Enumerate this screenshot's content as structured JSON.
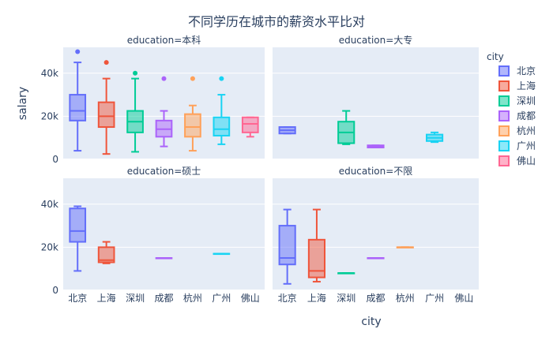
{
  "chart_data": {
    "type": "box",
    "title": "不同学历在城市的薪资水平比对",
    "xlabel": "city",
    "ylabel": "salary",
    "ylim": [
      0,
      52000
    ],
    "yticks": [
      0,
      20000,
      40000
    ],
    "ytick_labels": [
      "0",
      "20k",
      "40k"
    ],
    "categories": [
      "北京",
      "上海",
      "深圳",
      "成都",
      "杭州",
      "广州",
      "佛山"
    ],
    "legend": {
      "title": "city",
      "placement": "right",
      "items": [
        {
          "name": "北京",
          "color": "#636efa"
        },
        {
          "name": "上海",
          "color": "#EF553B"
        },
        {
          "name": "深圳",
          "color": "#00cc96"
        },
        {
          "name": "成都",
          "color": "#ab63fa"
        },
        {
          "name": "杭州",
          "color": "#FFA15A"
        },
        {
          "name": "广州",
          "color": "#19d3f3"
        },
        {
          "name": "佛山",
          "color": "#FF6692"
        }
      ]
    },
    "facets": [
      {
        "label": "education=本科",
        "boxes": [
          {
            "city": "北京",
            "min": 4000,
            "q1": 18000,
            "median": 22500,
            "q3": 30000,
            "max": 45000,
            "outliers": [
              50000
            ]
          },
          {
            "city": "上海",
            "min": 2500,
            "q1": 15000,
            "median": 20000,
            "q3": 26500,
            "max": 37500,
            "outliers": [
              45000
            ]
          },
          {
            "city": "深圳",
            "min": 3500,
            "q1": 12500,
            "median": 17500,
            "q3": 22500,
            "max": 37500,
            "outliers": [
              40000
            ]
          },
          {
            "city": "成都",
            "min": 6000,
            "q1": 10500,
            "median": 14000,
            "q3": 18000,
            "max": 22500,
            "outliers": [
              37500
            ]
          },
          {
            "city": "杭州",
            "min": 4000,
            "q1": 10500,
            "median": 15000,
            "q3": 21000,
            "max": 25000,
            "outliers": [
              37500
            ]
          },
          {
            "city": "广州",
            "min": 7000,
            "q1": 11000,
            "median": 14000,
            "q3": 19500,
            "max": 30000,
            "outliers": [
              37500
            ]
          },
          {
            "city": "佛山",
            "min": 10500,
            "q1": 12500,
            "median": 16500,
            "q3": 19500,
            "max": 19500,
            "outliers": []
          }
        ]
      },
      {
        "label": "education=大专",
        "boxes": [
          {
            "city": "北京",
            "min": 12000,
            "q1": 12000,
            "median": 13500,
            "q3": 15000,
            "max": 15000,
            "outliers": []
          },
          {
            "city": "深圳",
            "min": 7000,
            "q1": 7500,
            "median": 12500,
            "q3": 17500,
            "max": 22500,
            "outliers": []
          },
          {
            "city": "成都",
            "min": 5500,
            "q1": 5500,
            "median": 6000,
            "q3": 6500,
            "max": 6500,
            "outliers": []
          },
          {
            "city": "广州",
            "min": 8000,
            "q1": 8500,
            "median": 10000,
            "q3": 11500,
            "max": 12500,
            "outliers": []
          }
        ]
      },
      {
        "label": "education=硕士",
        "boxes": [
          {
            "city": "北京",
            "min": 9000,
            "q1": 22500,
            "median": 27500,
            "q3": 38000,
            "max": 39000,
            "outliers": []
          },
          {
            "city": "上海",
            "min": 12500,
            "q1": 13000,
            "median": 14000,
            "q3": 20000,
            "max": 22500,
            "outliers": []
          },
          {
            "city": "成都",
            "min": 15000,
            "q1": 15000,
            "median": 15000,
            "q3": 15000,
            "max": 15000,
            "outliers": []
          },
          {
            "city": "广州",
            "min": 17000,
            "q1": 17000,
            "median": 17000,
            "q3": 17000,
            "max": 17000,
            "outliers": []
          }
        ]
      },
      {
        "label": "education=不限",
        "boxes": [
          {
            "city": "北京",
            "min": 3000,
            "q1": 12000,
            "median": 15000,
            "q3": 30000,
            "max": 37500,
            "outliers": []
          },
          {
            "city": "上海",
            "min": 4000,
            "q1": 6000,
            "median": 9000,
            "q3": 23500,
            "max": 37500,
            "outliers": []
          },
          {
            "city": "深圳",
            "min": 8000,
            "q1": 8000,
            "median": 8000,
            "q3": 8000,
            "max": 8000,
            "outliers": []
          },
          {
            "city": "成都",
            "min": 15000,
            "q1": 15000,
            "median": 15000,
            "q3": 15000,
            "max": 15000,
            "outliers": []
          },
          {
            "city": "杭州",
            "min": 20000,
            "q1": 20000,
            "median": 20000,
            "q3": 20000,
            "max": 20000,
            "outliers": []
          }
        ]
      }
    ]
  }
}
